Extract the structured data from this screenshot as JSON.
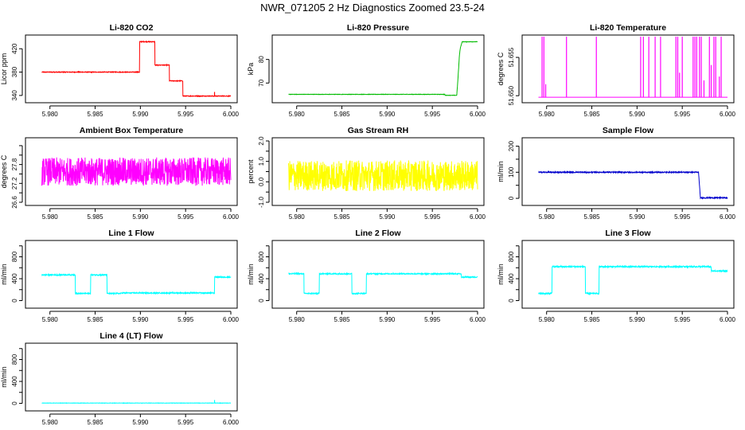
{
  "title": "NWR_071205  2 Hz Diagnostics Zoomed 23.5-24",
  "chart_data": [
    {
      "type": "line",
      "title": "Li-820 CO2",
      "ylabel": "Licor ppm",
      "color": "#ff0000",
      "xlim": [
        5.978,
        6.0
      ],
      "xticks": [
        5.98,
        5.985,
        5.99,
        5.995,
        6.0
      ],
      "xticklabels": [
        "5.980",
        "5.985",
        "5.990",
        "5.995",
        "6.000"
      ],
      "ylim": [
        333,
        438
      ],
      "yticks": [
        340,
        380,
        420
      ],
      "yticklabels": [
        "340",
        "380",
        "420"
      ],
      "noise": 0.6,
      "spikes": [
        [
          5.9982,
          346
        ]
      ],
      "series": [
        {
          "x": [
            5.9791,
            5.9899,
            5.9899,
            5.9916,
            5.9916,
            5.9932,
            5.9932,
            5.9947,
            5.9947,
            6.0
          ],
          "y": [
            380,
            380,
            432,
            432,
            392,
            392,
            365,
            365,
            339,
            339
          ]
        }
      ]
    },
    {
      "type": "line",
      "title": "Li-820 Pressure",
      "ylabel": "kPa",
      "color": "#00bb00",
      "xlim": [
        5.978,
        6.0
      ],
      "xticks": [
        5.98,
        5.985,
        5.99,
        5.995,
        6.0
      ],
      "xticklabels": [
        "5.980",
        "5.985",
        "5.990",
        "5.995",
        "6.000"
      ],
      "ylim": [
        63,
        89
      ],
      "yticks": [
        70,
        80
      ],
      "yticklabels": [
        "70",
        "80"
      ],
      "noise": 0.08,
      "series": [
        {
          "x": [
            5.9791,
            5.9964,
            5.9964,
            5.9977,
            5.9978,
            5.9979,
            5.998,
            5.9981,
            5.9983,
            6.0
          ],
          "y": [
            65.2,
            65.2,
            64.8,
            64.8,
            70,
            76,
            82,
            85,
            87.5,
            87.5
          ]
        }
      ]
    },
    {
      "type": "line",
      "title": "Li-820 Temperature",
      "ylabel": "degrees C",
      "color": "#ff00ff",
      "xlim": [
        5.978,
        6.0
      ],
      "xticks": [
        5.98,
        5.985,
        5.99,
        5.995,
        6.0
      ],
      "xticklabels": [
        "5.980",
        "5.985",
        "5.990",
        "5.995",
        "6.000"
      ],
      "ylim": [
        51.6495,
        51.6575
      ],
      "yticks": [
        51.65,
        51.655
      ],
      "yticklabels": [
        "51.650",
        "51.655"
      ],
      "baseline": 51.6498,
      "high": 51.6577,
      "noise": 0,
      "spikes": [
        [
          5.9795,
          51.6577
        ],
        [
          5.9797,
          51.6577
        ],
        [
          5.9799,
          51.6515
        ],
        [
          5.9822,
          51.6577
        ],
        [
          5.9855,
          51.6577
        ],
        [
          5.9904,
          51.6577
        ],
        [
          5.9907,
          51.6577
        ],
        [
          5.9913,
          51.6577
        ],
        [
          5.992,
          51.6577
        ],
        [
          5.9926,
          51.6577
        ],
        [
          5.9943,
          51.6577
        ],
        [
          5.9945,
          51.6577
        ],
        [
          5.9947,
          51.653
        ],
        [
          5.995,
          51.6577
        ],
        [
          5.9962,
          51.6577
        ],
        [
          5.9964,
          51.6577
        ],
        [
          5.9966,
          51.6577
        ],
        [
          5.9969,
          51.6577
        ],
        [
          5.9971,
          51.6577
        ],
        [
          5.9974,
          51.652
        ],
        [
          5.998,
          51.6577
        ],
        [
          5.9982,
          51.654
        ],
        [
          5.9985,
          51.6577
        ],
        [
          5.9987,
          51.6577
        ],
        [
          5.9991,
          51.6525
        ],
        [
          5.9993,
          51.6577
        ]
      ],
      "series": [
        {
          "x": [
            5.9791,
            6.0
          ],
          "y": [
            51.6498,
            51.6498
          ]
        }
      ]
    },
    {
      "type": "line",
      "title": "Ambient Box Temperature",
      "ylabel": "degrees C",
      "color": "#ff00ff",
      "xlim": [
        5.978,
        6.0
      ],
      "xticks": [
        5.98,
        5.985,
        5.99,
        5.995,
        6.0
      ],
      "xticklabels": [
        "5.980",
        "5.985",
        "5.990",
        "5.995",
        "6.000"
      ],
      "ylim": [
        26.6,
        27.9
      ],
      "yticks": [
        26.6,
        26.8,
        27.0,
        27.2,
        27.4,
        27.6,
        27.8
      ],
      "yticklabels": [
        "26.6",
        "",
        "27.2",
        "",
        "27.8",
        "",
        ""
      ],
      "noise": 0.3,
      "series": [
        {
          "x": [
            5.9791,
            6.0
          ],
          "y": [
            27.25,
            27.25
          ]
        }
      ]
    },
    {
      "type": "line",
      "title": "Gas Stream RH",
      "ylabel": "percent",
      "color": "#ffff00",
      "xlim": [
        5.978,
        6.0
      ],
      "xticks": [
        5.98,
        5.985,
        5.99,
        5.995,
        6.0
      ],
      "xticklabels": [
        "5.980",
        "5.985",
        "5.990",
        "5.995",
        "6.000"
      ],
      "ylim": [
        -1.0,
        2.0
      ],
      "yticks": [
        -1.0,
        -0.5,
        0.0,
        0.5,
        1.0,
        1.5,
        2.0
      ],
      "yticklabels": [
        "-1.0",
        "",
        "0.0",
        "",
        "1.0",
        "",
        "2.0"
      ],
      "noise": 0.75,
      "series": [
        {
          "x": [
            5.9791,
            6.0
          ],
          "y": [
            0.3,
            0.3
          ]
        }
      ]
    },
    {
      "type": "line",
      "title": "Sample Flow",
      "ylabel": "ml/min",
      "color": "#0000cc",
      "xlim": [
        5.978,
        6.0
      ],
      "xticks": [
        5.98,
        5.985,
        5.99,
        5.995,
        6.0
      ],
      "xticklabels": [
        "5.980",
        "5.985",
        "5.990",
        "5.995",
        "6.000"
      ],
      "ylim": [
        -15,
        220
      ],
      "yticks": [
        0,
        50,
        100,
        150,
        200
      ],
      "yticklabels": [
        "0",
        "",
        "100",
        "",
        "200"
      ],
      "noise": 2,
      "series": [
        {
          "x": [
            5.9791,
            5.9968,
            5.9968,
            5.997,
            6.0
          ],
          "y": [
            100,
            100,
            100,
            2,
            2
          ]
        }
      ]
    },
    {
      "type": "line",
      "title": "Line 1 Flow",
      "ylabel": "ml/min",
      "color": "#00ffff",
      "xlim": [
        5.978,
        6.0
      ],
      "xticks": [
        5.98,
        5.985,
        5.99,
        5.995,
        6.0
      ],
      "xticklabels": [
        "5.980",
        "5.985",
        "5.990",
        "5.995",
        "6.000"
      ],
      "ylim": [
        -80,
        1040
      ],
      "yticks": [
        0,
        200,
        400,
        600,
        800,
        1000
      ],
      "yticklabels": [
        "0",
        "",
        "400",
        "",
        "800",
        ""
      ],
      "noise": 10,
      "series": [
        {
          "x": [
            5.9791,
            5.9791,
            5.9828,
            5.9828,
            5.9845,
            5.9845,
            5.9863,
            5.9863,
            5.9879,
            5.9879,
            5.9982,
            5.9982,
            6.0
          ],
          "y": [
            130,
            470,
            470,
            130,
            130,
            470,
            470,
            130,
            130,
            140,
            140,
            430,
            430
          ]
        }
      ]
    },
    {
      "type": "line",
      "title": "Line 2 Flow",
      "ylabel": "ml/min",
      "color": "#00ffff",
      "xlim": [
        5.978,
        6.0
      ],
      "xticks": [
        5.98,
        5.985,
        5.99,
        5.995,
        6.0
      ],
      "xticklabels": [
        "5.980",
        "5.985",
        "5.990",
        "5.995",
        "6.000"
      ],
      "ylim": [
        -80,
        1040
      ],
      "yticks": [
        0,
        200,
        400,
        600,
        800,
        1000
      ],
      "yticklabels": [
        "0",
        "",
        "400",
        "",
        "800",
        ""
      ],
      "noise": 10,
      "series": [
        {
          "x": [
            5.9791,
            5.9808,
            5.9808,
            5.9825,
            5.9825,
            5.9861,
            5.9861,
            5.9877,
            5.9877,
            5.9982,
            5.9982,
            6.0
          ],
          "y": [
            490,
            490,
            130,
            130,
            490,
            490,
            130,
            130,
            490,
            490,
            430,
            430
          ]
        }
      ]
    },
    {
      "type": "line",
      "title": "Line 3 Flow",
      "ylabel": "ml/min",
      "color": "#00ffff",
      "xlim": [
        5.978,
        6.0
      ],
      "xticks": [
        5.98,
        5.985,
        5.99,
        5.995,
        6.0
      ],
      "xticklabels": [
        "5.980",
        "5.985",
        "5.990",
        "5.995",
        "6.000"
      ],
      "ylim": [
        -80,
        1040
      ],
      "yticks": [
        0,
        200,
        400,
        600,
        800,
        1000
      ],
      "yticklabels": [
        "0",
        "",
        "400",
        "",
        "800",
        ""
      ],
      "noise": 12,
      "series": [
        {
          "x": [
            5.9791,
            5.9791,
            5.9806,
            5.9806,
            5.9843,
            5.9843,
            5.9858,
            5.9858,
            5.9982,
            5.9982,
            6.0
          ],
          "y": [
            580,
            130,
            130,
            620,
            620,
            130,
            130,
            620,
            620,
            540,
            540
          ]
        }
      ]
    },
    {
      "type": "line",
      "title": "Line 4 (LT) Flow",
      "ylabel": "ml/min",
      "color": "#00ffff",
      "xlim": [
        5.978,
        6.0
      ],
      "xticks": [
        5.98,
        5.985,
        5.99,
        5.995,
        6.0
      ],
      "xticklabels": [
        "5.980",
        "5.985",
        "5.990",
        "5.995",
        "6.000"
      ],
      "ylim": [
        -80,
        1040
      ],
      "yticks": [
        0,
        200,
        400,
        600,
        800,
        1000
      ],
      "yticklabels": [
        "0",
        "",
        "400",
        "",
        "800",
        ""
      ],
      "noise": 3,
      "spikes": [
        [
          5.9982,
          60
        ]
      ],
      "series": [
        {
          "x": [
            5.9791,
            6.0
          ],
          "y": [
            5,
            5
          ]
        }
      ]
    }
  ]
}
